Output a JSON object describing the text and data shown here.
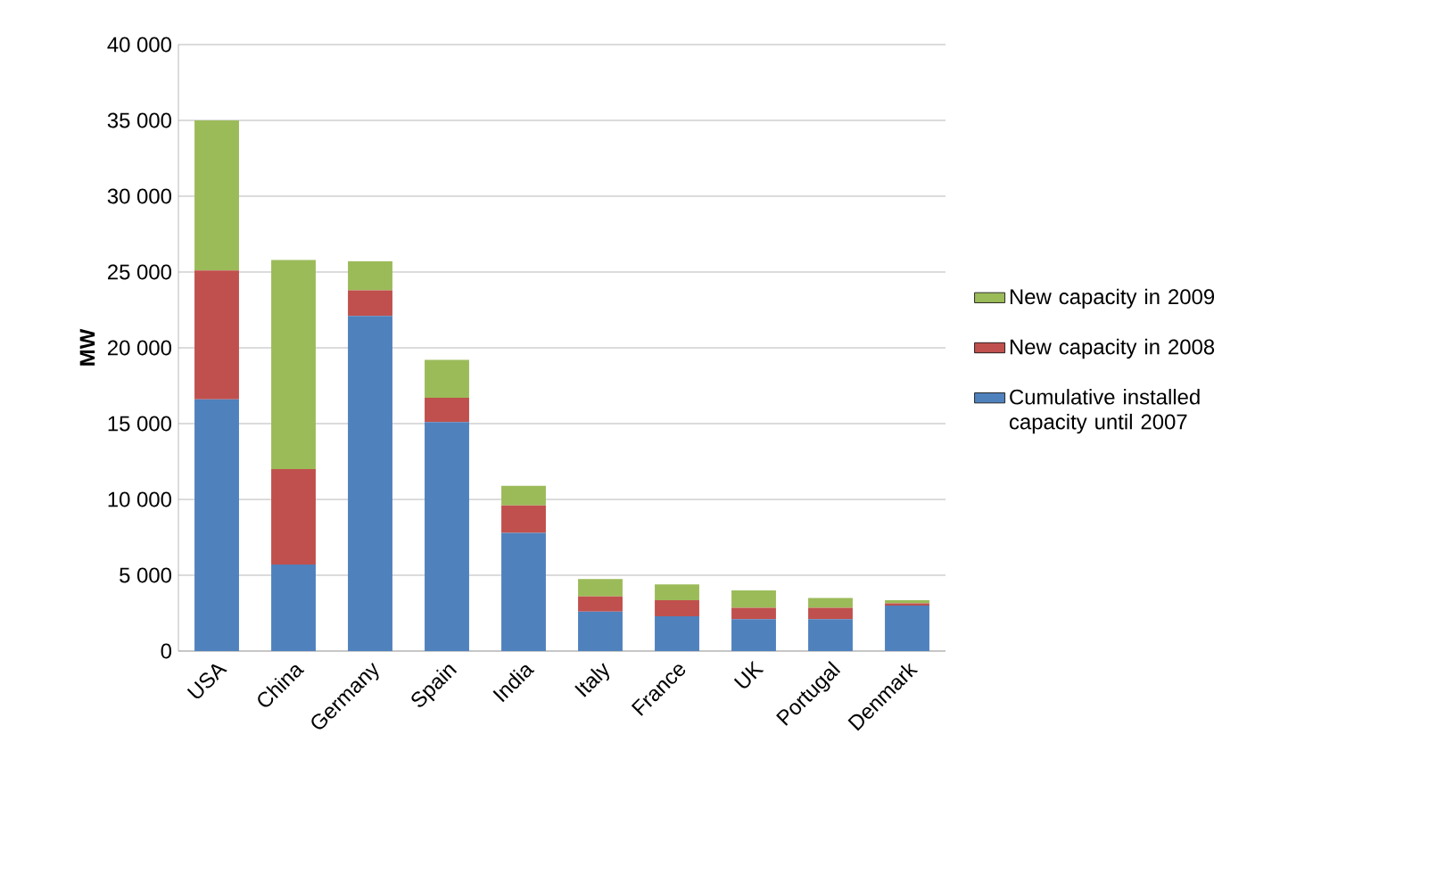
{
  "chart_data": {
    "type": "bar",
    "stacked": true,
    "ylabel": "MW",
    "categories": [
      "USA",
      "China",
      "Germany",
      "Spain",
      "India",
      "Italy",
      "France",
      "UK",
      "Portugal",
      "Denmark"
    ],
    "series": [
      {
        "name": "Cumulative installed capacity until 2007",
        "color": "#4f81bd",
        "values": [
          16600,
          5700,
          22100,
          15100,
          7800,
          2600,
          2300,
          2100,
          2100,
          3000
        ]
      },
      {
        "name": "New capacity in 2008",
        "color": "#c0504d",
        "values": [
          8500,
          6300,
          1700,
          1600,
          1800,
          1000,
          1050,
          750,
          750,
          150
        ]
      },
      {
        "name": "New capacity in 2009",
        "color": "#9bbb59",
        "values": [
          9900,
          13800,
          1900,
          2500,
          1300,
          1150,
          1050,
          1150,
          650,
          200
        ]
      }
    ],
    "ylim": [
      0,
      40000
    ],
    "yticks": [
      {
        "value": 0,
        "label": "0"
      },
      {
        "value": 5000,
        "label": "5 000"
      },
      {
        "value": 10000,
        "label": "10 000"
      },
      {
        "value": 15000,
        "label": "15 000"
      },
      {
        "value": 20000,
        "label": "20 000"
      },
      {
        "value": 25000,
        "label": "25 000"
      },
      {
        "value": 30000,
        "label": "30 000"
      },
      {
        "value": 35000,
        "label": "35 000"
      },
      {
        "value": 40000,
        "label": "40 000"
      }
    ],
    "grid": "y",
    "legend": "right"
  }
}
